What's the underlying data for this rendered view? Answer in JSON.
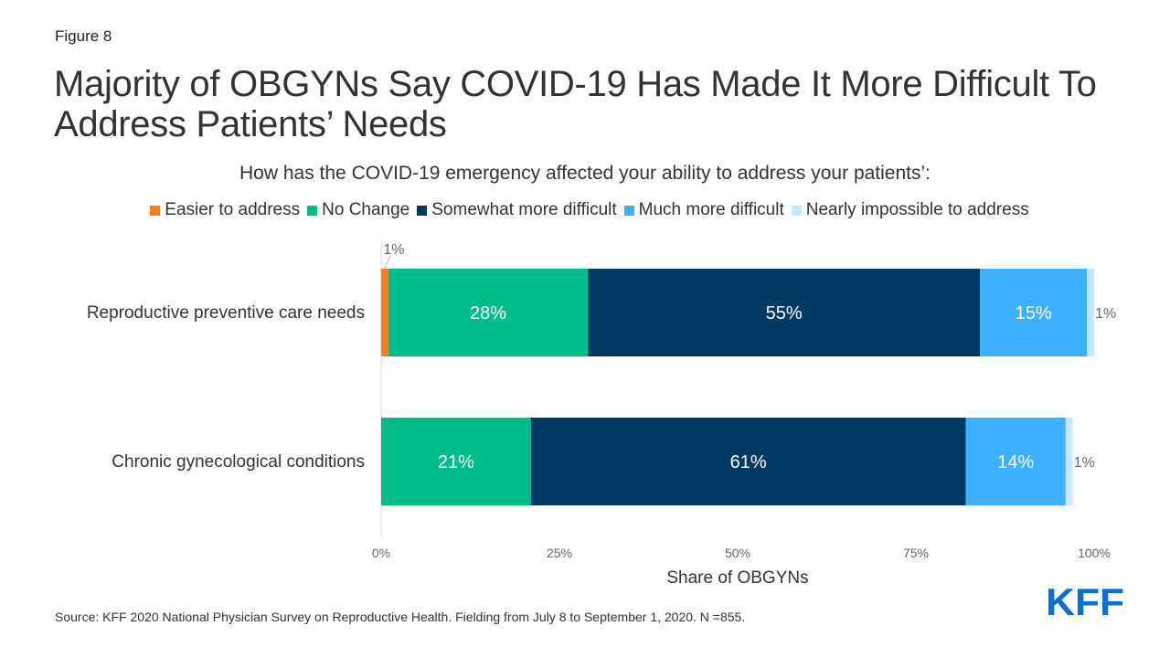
{
  "figure_label": "Figure 8",
  "title": "Majority of OBGYNs Say COVID-19 Has Made It More Difficult To Address Patients’ Needs",
  "subtitle": "How has the COVID-19 emergency affected your ability to address your patients’:",
  "source": "Source: KFF 2020 National Physician Survey on Reproductive Health. Fielding from July 8 to September 1, 2020. N =855.",
  "logo": {
    "text": "KFF",
    "color": "#0b6fd0"
  },
  "chart_data": {
    "type": "bar",
    "orientation": "horizontal",
    "stacked": true,
    "categories": [
      "Reproductive preventive care needs",
      "Chronic gynecological conditions"
    ],
    "series": [
      {
        "name": "Easier to address",
        "color": "#f4801f",
        "values": [
          1,
          0
        ],
        "labels": [
          "1%",
          ""
        ]
      },
      {
        "name": "No Change",
        "color": "#00bc88",
        "values": [
          28,
          21
        ],
        "labels": [
          "28%",
          "21%"
        ]
      },
      {
        "name": "Somewhat more difficult",
        "color": "#003a63",
        "values": [
          55,
          61
        ],
        "labels": [
          "55%",
          "61%"
        ]
      },
      {
        "name": "Much more difficult",
        "color": "#3fafff",
        "values": [
          15,
          14
        ],
        "labels": [
          "15%",
          "14%"
        ]
      },
      {
        "name": "Nearly impossible to address",
        "color": "#c4e6ff",
        "values": [
          1,
          1
        ],
        "labels": [
          "1%",
          "1%"
        ]
      }
    ],
    "xlabel": "Share of OBGYNs",
    "xlim": [
      0,
      100
    ],
    "xticks": [
      0,
      25,
      50,
      75,
      100
    ],
    "xtick_labels": [
      "0%",
      "25%",
      "50%",
      "75%",
      "100%"
    ],
    "grid": false,
    "legend_position": "top"
  }
}
